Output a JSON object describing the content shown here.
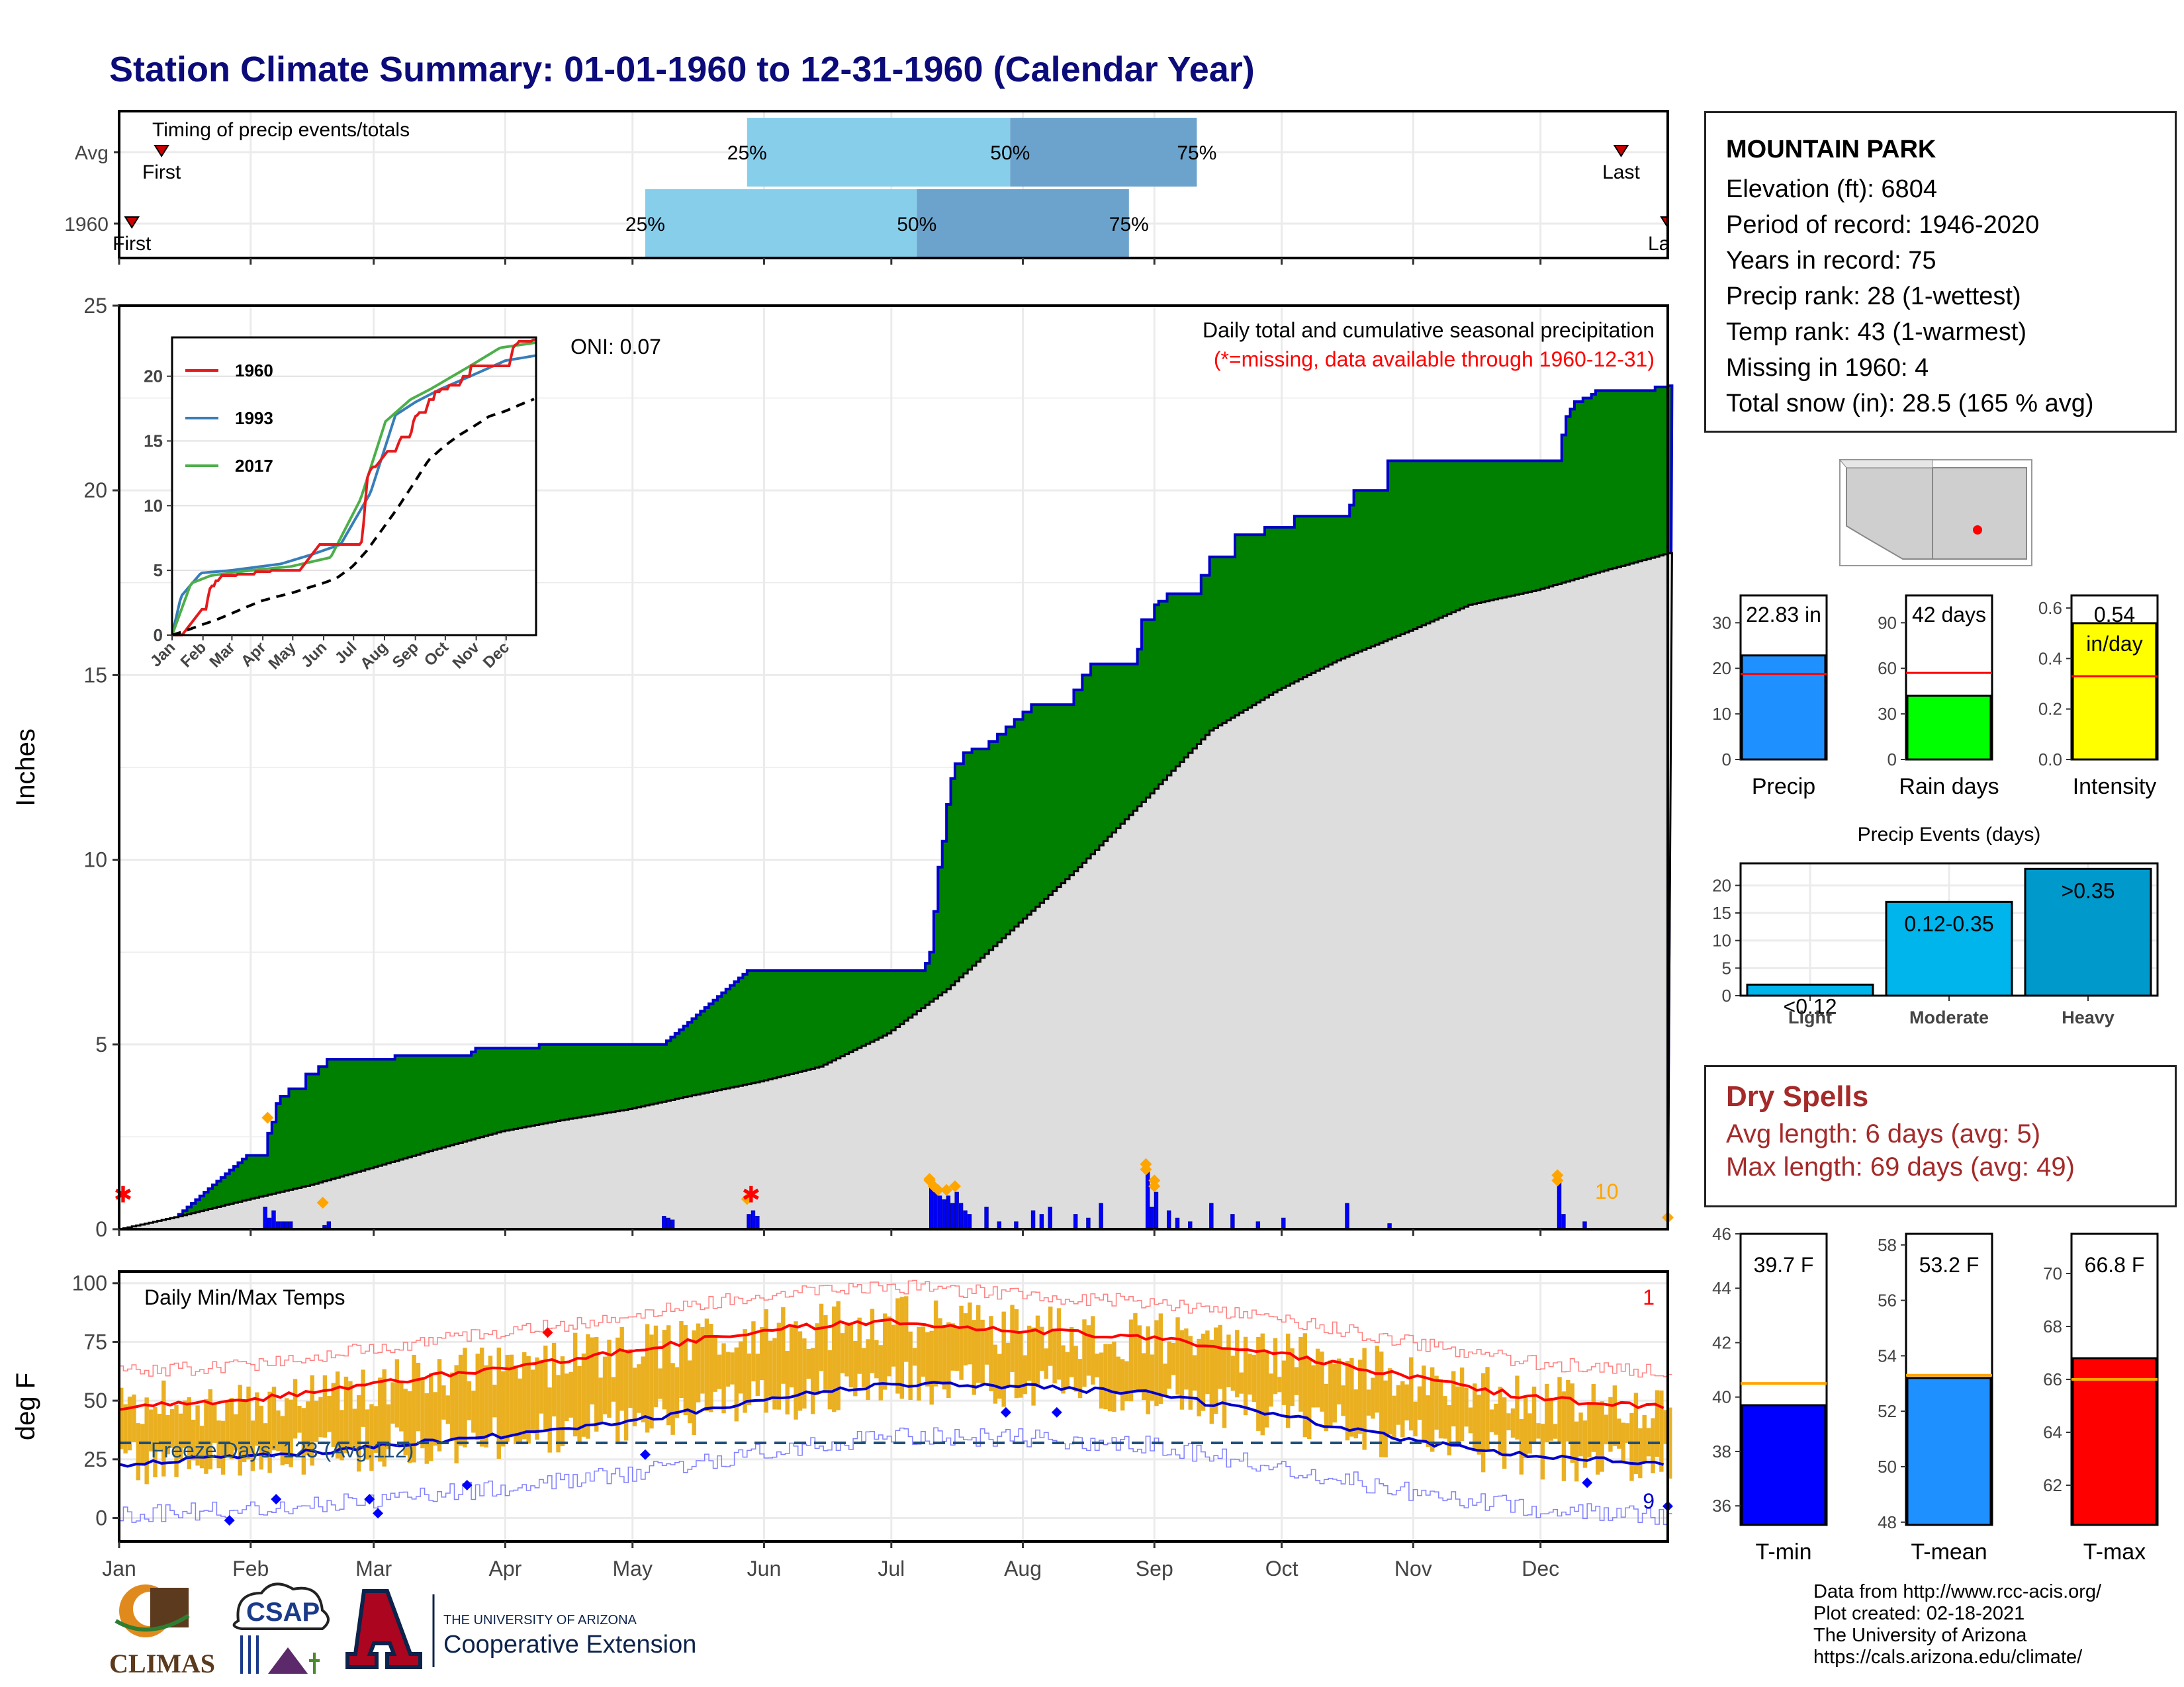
{
  "page": {
    "title": "Station Climate Summary: 01-01-1960 to 12-31-1960 (Calendar Year)"
  },
  "colors": {
    "title": "#0b0b7a",
    "cumulative_fill": "#008000",
    "cumulative_line": "#0000cc",
    "average_fill": "#dddddd",
    "daily_bar": "#0000ff",
    "light_blue": "#87ceeb",
    "mid_blue": "#6ba3cc",
    "temp_bar": "#eab021",
    "tmax_line": "#ff0000",
    "tmin_line": "#0000cc",
    "dry_text": "#a52a2a"
  },
  "timing_panel": {
    "title": "Timing of precip events/totals",
    "rows": [
      {
        "label": "Avg",
        "first_label": "First",
        "last_label": "Last",
        "first_doy": 11,
        "last_doy": 355,
        "q25": 149,
        "q50": 211,
        "q75": 255,
        "q25_label": "25%",
        "q50_label": "50%",
        "q75_label": "75%"
      },
      {
        "label": "1960",
        "first_label": "First",
        "last_label": "Last",
        "first_doy": 4,
        "last_doy": 366,
        "q25": 125,
        "q50": 189,
        "q75": 239,
        "q25_label": "25%",
        "q50_label": "50%",
        "q75_label": "75%"
      }
    ]
  },
  "precip_panel": {
    "ylabel": "Inches",
    "oni_label": "ONI: 0.07",
    "subtitle": "Daily total and cumulative seasonal precipitation",
    "missing_note": "(*=missing, data available through 1960-12-31)",
    "count_label": "10",
    "y_ticks": [
      "0",
      "5",
      "10",
      "15",
      "20",
      "25"
    ]
  },
  "inset": {
    "x_ticks": [
      "Jan",
      "Feb",
      "Mar",
      "Apr",
      "May",
      "Jun",
      "Jul",
      "Aug",
      "Sep",
      "Oct",
      "Nov",
      "Dec"
    ],
    "y_ticks": [
      "0",
      "5",
      "10",
      "15",
      "20"
    ],
    "legend": [
      {
        "name": "1960",
        "color": "#e41a1c"
      },
      {
        "name": "1993",
        "color": "#377eb8"
      },
      {
        "name": "2017",
        "color": "#4daf4a"
      }
    ]
  },
  "temp_panel": {
    "ylabel": "deg F",
    "title": "Daily Min/Max Temps",
    "freeze_label": "Freeze Days: 123 (Avg:112)",
    "hot_count": "1",
    "cold_count": "9",
    "y_ticks": [
      "0",
      "25",
      "50",
      "75",
      "100"
    ],
    "x_ticks": [
      "Jan",
      "Feb",
      "Mar",
      "Apr",
      "May",
      "Jun",
      "Jul",
      "Aug",
      "Sep",
      "Oct",
      "Nov",
      "Dec"
    ]
  },
  "station": {
    "name": "MOUNTAIN PARK",
    "lines": [
      "Elevation (ft): 6804",
      "Period of record: 1946-2020",
      "Years in record: 75",
      "Precip rank: 28 (1-wettest)",
      "Temp rank: 43 (1-warmest)",
      "Missing in 1960: 4",
      "Total snow (in): 28.5 (165 % avg)"
    ]
  },
  "summary_bars": [
    {
      "label": "Precip",
      "value_label": "22.83 in",
      "value": 22.83,
      "avg": 18.8,
      "ymax": 36,
      "ticks": [
        "0",
        "10",
        "20",
        "30"
      ],
      "tick_vals": [
        0,
        10,
        20,
        30
      ],
      "color": "#1e90ff"
    },
    {
      "label": "Rain days",
      "value_label": "42 days",
      "value": 42,
      "avg": 57,
      "ymax": 108,
      "ticks": [
        "0",
        "30",
        "60",
        "90"
      ],
      "tick_vals": [
        0,
        30,
        60,
        90
      ],
      "color": "#00ff00"
    },
    {
      "label": "Intensity",
      "value_label": "0.54",
      "unit_label": "in/day",
      "value": 0.54,
      "avg": 0.33,
      "ymax": 0.65,
      "ticks": [
        "0.0",
        "0.2",
        "0.4",
        "0.6"
      ],
      "tick_vals": [
        0,
        0.2,
        0.4,
        0.6
      ],
      "color": "#ffff00"
    }
  ],
  "precip_events": {
    "title": "Precip Events (days)",
    "ticks": [
      "0",
      "5",
      "10",
      "15",
      "20"
    ],
    "bars": [
      {
        "category": "Light",
        "label": "<0.12",
        "value": 2,
        "color": "#00b4ec"
      },
      {
        "category": "Moderate",
        "label": "0.12-0.35",
        "value": 17,
        "color": "#00b4ec"
      },
      {
        "category": "Heavy",
        "label": ">0.35",
        "value": 23,
        "color": "#0099cc"
      }
    ]
  },
  "dry_spells": {
    "title": "Dry Spells",
    "avg_line": "Avg length: 6 days (avg: 5)",
    "max_line": "Max length: 69 days (avg: 49)"
  },
  "temp_summary": [
    {
      "label": "T-min",
      "value_label": "39.7 F",
      "value": 39.7,
      "avg": 40.5,
      "ymin": 35.3,
      "ymax": 46,
      "ticks": [
        "36",
        "38",
        "40",
        "42",
        "44",
        "46"
      ],
      "tick_vals": [
        36,
        38,
        40,
        42,
        44,
        46
      ],
      "color": "#0000ff"
    },
    {
      "label": "T-mean",
      "value_label": "53.2 F",
      "value": 53.2,
      "avg": 53.3,
      "ymin": 47.9,
      "ymax": 58.4,
      "ticks": [
        "48",
        "50",
        "52",
        "54",
        "56",
        "58"
      ],
      "tick_vals": [
        48,
        50,
        52,
        54,
        56,
        58
      ],
      "color": "#1e90ff"
    },
    {
      "label": "T-max",
      "value_label": "66.8 F",
      "value": 66.8,
      "avg": 66.0,
      "ymin": 60.5,
      "ymax": 71.5,
      "ticks": [
        "62",
        "64",
        "66",
        "68",
        "70"
      ],
      "tick_vals": [
        62,
        64,
        66,
        68,
        70
      ],
      "color": "#ff0000"
    }
  ],
  "credits": [
    "Data from http://www.rcc-acis.org/",
    "Plot created: 02-18-2021",
    "The University of Arizona",
    "https://cals.arizona.edu/climate/"
  ],
  "logos": {
    "climas": "CLIMAS",
    "csap": "CSAP",
    "ua_small": "THE UNIVERSITY OF ARIZONA",
    "ua_big": "Cooperative Extension"
  },
  "chart_data": [
    {
      "type": "area",
      "title": "Daily total and cumulative seasonal precipitation",
      "ylabel": "Inches",
      "ylim": [
        0,
        25
      ],
      "x_unit": "day of year",
      "cumulative_steps": [
        [
          1,
          0
        ],
        [
          12,
          0.1
        ],
        [
          13,
          0.2
        ],
        [
          14,
          0.3
        ],
        [
          15,
          0.4
        ],
        [
          16,
          0.5
        ],
        [
          17,
          0.6
        ],
        [
          18,
          0.7
        ],
        [
          19,
          0.8
        ],
        [
          20,
          0.9
        ],
        [
          21,
          1.0
        ],
        [
          22,
          1.1
        ],
        [
          23,
          1.2
        ],
        [
          24,
          1.3
        ],
        [
          25,
          1.4
        ],
        [
          26,
          1.5
        ],
        [
          27,
          1.6
        ],
        [
          28,
          1.7
        ],
        [
          29,
          1.8
        ],
        [
          30,
          1.9
        ],
        [
          31,
          2.0
        ],
        [
          36,
          2.6
        ],
        [
          37,
          2.9
        ],
        [
          38,
          3.4
        ],
        [
          39,
          3.6
        ],
        [
          41,
          3.8
        ],
        [
          45,
          4.2
        ],
        [
          48,
          4.4
        ],
        [
          50,
          4.6
        ],
        [
          65,
          4.6
        ],
        [
          66,
          4.7
        ],
        [
          84,
          4.8
        ],
        [
          85,
          4.9
        ],
        [
          100,
          5.0
        ],
        [
          128,
          5.0
        ],
        [
          129,
          5.0
        ],
        [
          130,
          5.1
        ],
        [
          131,
          5.2
        ],
        [
          132,
          5.3
        ],
        [
          133,
          5.4
        ],
        [
          134,
          5.5
        ],
        [
          135,
          5.6
        ],
        [
          136,
          5.7
        ],
        [
          137,
          5.8
        ],
        [
          138,
          5.9
        ],
        [
          139,
          6.0
        ],
        [
          140,
          6.1
        ],
        [
          141,
          6.2
        ],
        [
          142,
          6.3
        ],
        [
          143,
          6.4
        ],
        [
          144,
          6.5
        ],
        [
          145,
          6.6
        ],
        [
          146,
          6.7
        ],
        [
          147,
          6.8
        ],
        [
          148,
          6.9
        ],
        [
          149,
          7.0
        ],
        [
          150,
          7.0
        ],
        [
          160,
          7.0
        ],
        [
          170,
          7.0
        ],
        [
          190,
          7.0
        ],
        [
          191,
          7.2
        ],
        [
          192,
          7.5
        ],
        [
          193,
          8.6
        ],
        [
          194,
          9.8
        ],
        [
          195,
          10.5
        ],
        [
          196,
          11.5
        ],
        [
          197,
          12.2
        ],
        [
          198,
          12.6
        ],
        [
          200,
          12.9
        ],
        [
          202,
          13.0
        ],
        [
          206,
          13.2
        ],
        [
          208,
          13.4
        ],
        [
          210,
          13.6
        ],
        [
          212,
          13.8
        ],
        [
          214,
          14.0
        ],
        [
          216,
          14.2
        ],
        [
          225,
          14.2
        ],
        [
          226,
          14.6
        ],
        [
          228,
          15.0
        ],
        [
          230,
          15.3
        ],
        [
          240,
          15.3
        ],
        [
          241,
          15.7
        ],
        [
          242,
          16.5
        ],
        [
          245,
          16.9
        ],
        [
          246,
          17.0
        ],
        [
          248,
          17.2
        ],
        [
          256,
          17.7
        ],
        [
          258,
          18.2
        ],
        [
          264,
          18.8
        ],
        [
          271,
          19.0
        ],
        [
          278,
          19.3
        ],
        [
          291,
          19.6
        ],
        [
          292,
          20.0
        ],
        [
          300,
          20.8
        ],
        [
          310,
          20.8
        ],
        [
          320,
          20.8
        ],
        [
          340,
          20.8
        ],
        [
          341,
          21.5
        ],
        [
          342,
          22.0
        ],
        [
          343,
          22.2
        ],
        [
          344,
          22.4
        ],
        [
          346,
          22.5
        ],
        [
          348,
          22.6
        ],
        [
          349,
          22.7
        ],
        [
          362,
          22.7
        ],
        [
          363,
          22.8
        ],
        [
          366,
          22.83
        ]
      ],
      "average_curve": [
        [
          1,
          0
        ],
        [
          15,
          0.35
        ],
        [
          31,
          0.8
        ],
        [
          46,
          1.2
        ],
        [
          60,
          1.65
        ],
        [
          75,
          2.15
        ],
        [
          91,
          2.65
        ],
        [
          105,
          2.95
        ],
        [
          121,
          3.25
        ],
        [
          135,
          3.6
        ],
        [
          152,
          4.0
        ],
        [
          166,
          4.4
        ],
        [
          182,
          5.3
        ],
        [
          196,
          6.5
        ],
        [
          213,
          8.3
        ],
        [
          227,
          9.8
        ],
        [
          244,
          11.8
        ],
        [
          258,
          13.5
        ],
        [
          274,
          14.6
        ],
        [
          288,
          15.4
        ],
        [
          305,
          16.2
        ],
        [
          319,
          16.9
        ],
        [
          335,
          17.3
        ],
        [
          350,
          17.8
        ],
        [
          366,
          18.3
        ]
      ],
      "daily_precip": [
        [
          35,
          0.6
        ],
        [
          36,
          0.3
        ],
        [
          37,
          0.5
        ],
        [
          38,
          0.2
        ],
        [
          39,
          0.2
        ],
        [
          40,
          0.2
        ],
        [
          41,
          0.2
        ],
        [
          49,
          0.1
        ],
        [
          50,
          0.2
        ],
        [
          129,
          0.35
        ],
        [
          130,
          0.3
        ],
        [
          131,
          0.25
        ],
        [
          149,
          0.4
        ],
        [
          150,
          0.5
        ],
        [
          151,
          0.35
        ],
        [
          192,
          1.2
        ],
        [
          193,
          1.0
        ],
        [
          194,
          0.9
        ],
        [
          195,
          0.8
        ],
        [
          196,
          0.9
        ],
        [
          197,
          0.7
        ],
        [
          198,
          1.0
        ],
        [
          199,
          0.7
        ],
        [
          200,
          0.5
        ],
        [
          201,
          0.4
        ],
        [
          205,
          0.6
        ],
        [
          208,
          0.2
        ],
        [
          212,
          0.2
        ],
        [
          216,
          0.5
        ],
        [
          218,
          0.4
        ],
        [
          220,
          0.6
        ],
        [
          226,
          0.4
        ],
        [
          229,
          0.3
        ],
        [
          232,
          0.7
        ],
        [
          243,
          1.6
        ],
        [
          244,
          0.6
        ],
        [
          245,
          1.0
        ],
        [
          248,
          0.5
        ],
        [
          250,
          0.3
        ],
        [
          253,
          0.2
        ],
        [
          258,
          0.7
        ],
        [
          263,
          0.4
        ],
        [
          269,
          0.2
        ],
        [
          275,
          0.3
        ],
        [
          290,
          0.7
        ],
        [
          300,
          0.15
        ],
        [
          340,
          1.3
        ],
        [
          341,
          0.4
        ],
        [
          346,
          0.2
        ]
      ],
      "missing_days": [
        1,
        149
      ]
    },
    {
      "type": "line",
      "title": "Daily Min/Max Temps",
      "ylabel": "deg F",
      "ylim": [
        -10,
        105
      ],
      "freeze_threshold": 32,
      "avg_tmax": [
        [
          1,
          47
        ],
        [
          31,
          50
        ],
        [
          60,
          57
        ],
        [
          91,
          64
        ],
        [
          121,
          71
        ],
        [
          152,
          80
        ],
        [
          182,
          84
        ],
        [
          213,
          80
        ],
        [
          244,
          77
        ],
        [
          274,
          70
        ],
        [
          305,
          60
        ],
        [
          335,
          51
        ],
        [
          366,
          47
        ]
      ],
      "avg_tmin": [
        [
          1,
          23
        ],
        [
          31,
          26
        ],
        [
          60,
          30
        ],
        [
          91,
          35
        ],
        [
          121,
          41
        ],
        [
          152,
          50
        ],
        [
          182,
          57
        ],
        [
          213,
          56
        ],
        [
          244,
          53
        ],
        [
          274,
          44
        ],
        [
          305,
          33
        ],
        [
          335,
          26
        ],
        [
          366,
          23
        ]
      ]
    },
    {
      "type": "bar",
      "title": "Precip Events (days)",
      "categories": [
        "Light",
        "Moderate",
        "Heavy"
      ],
      "values": [
        2,
        17,
        23
      ]
    }
  ]
}
